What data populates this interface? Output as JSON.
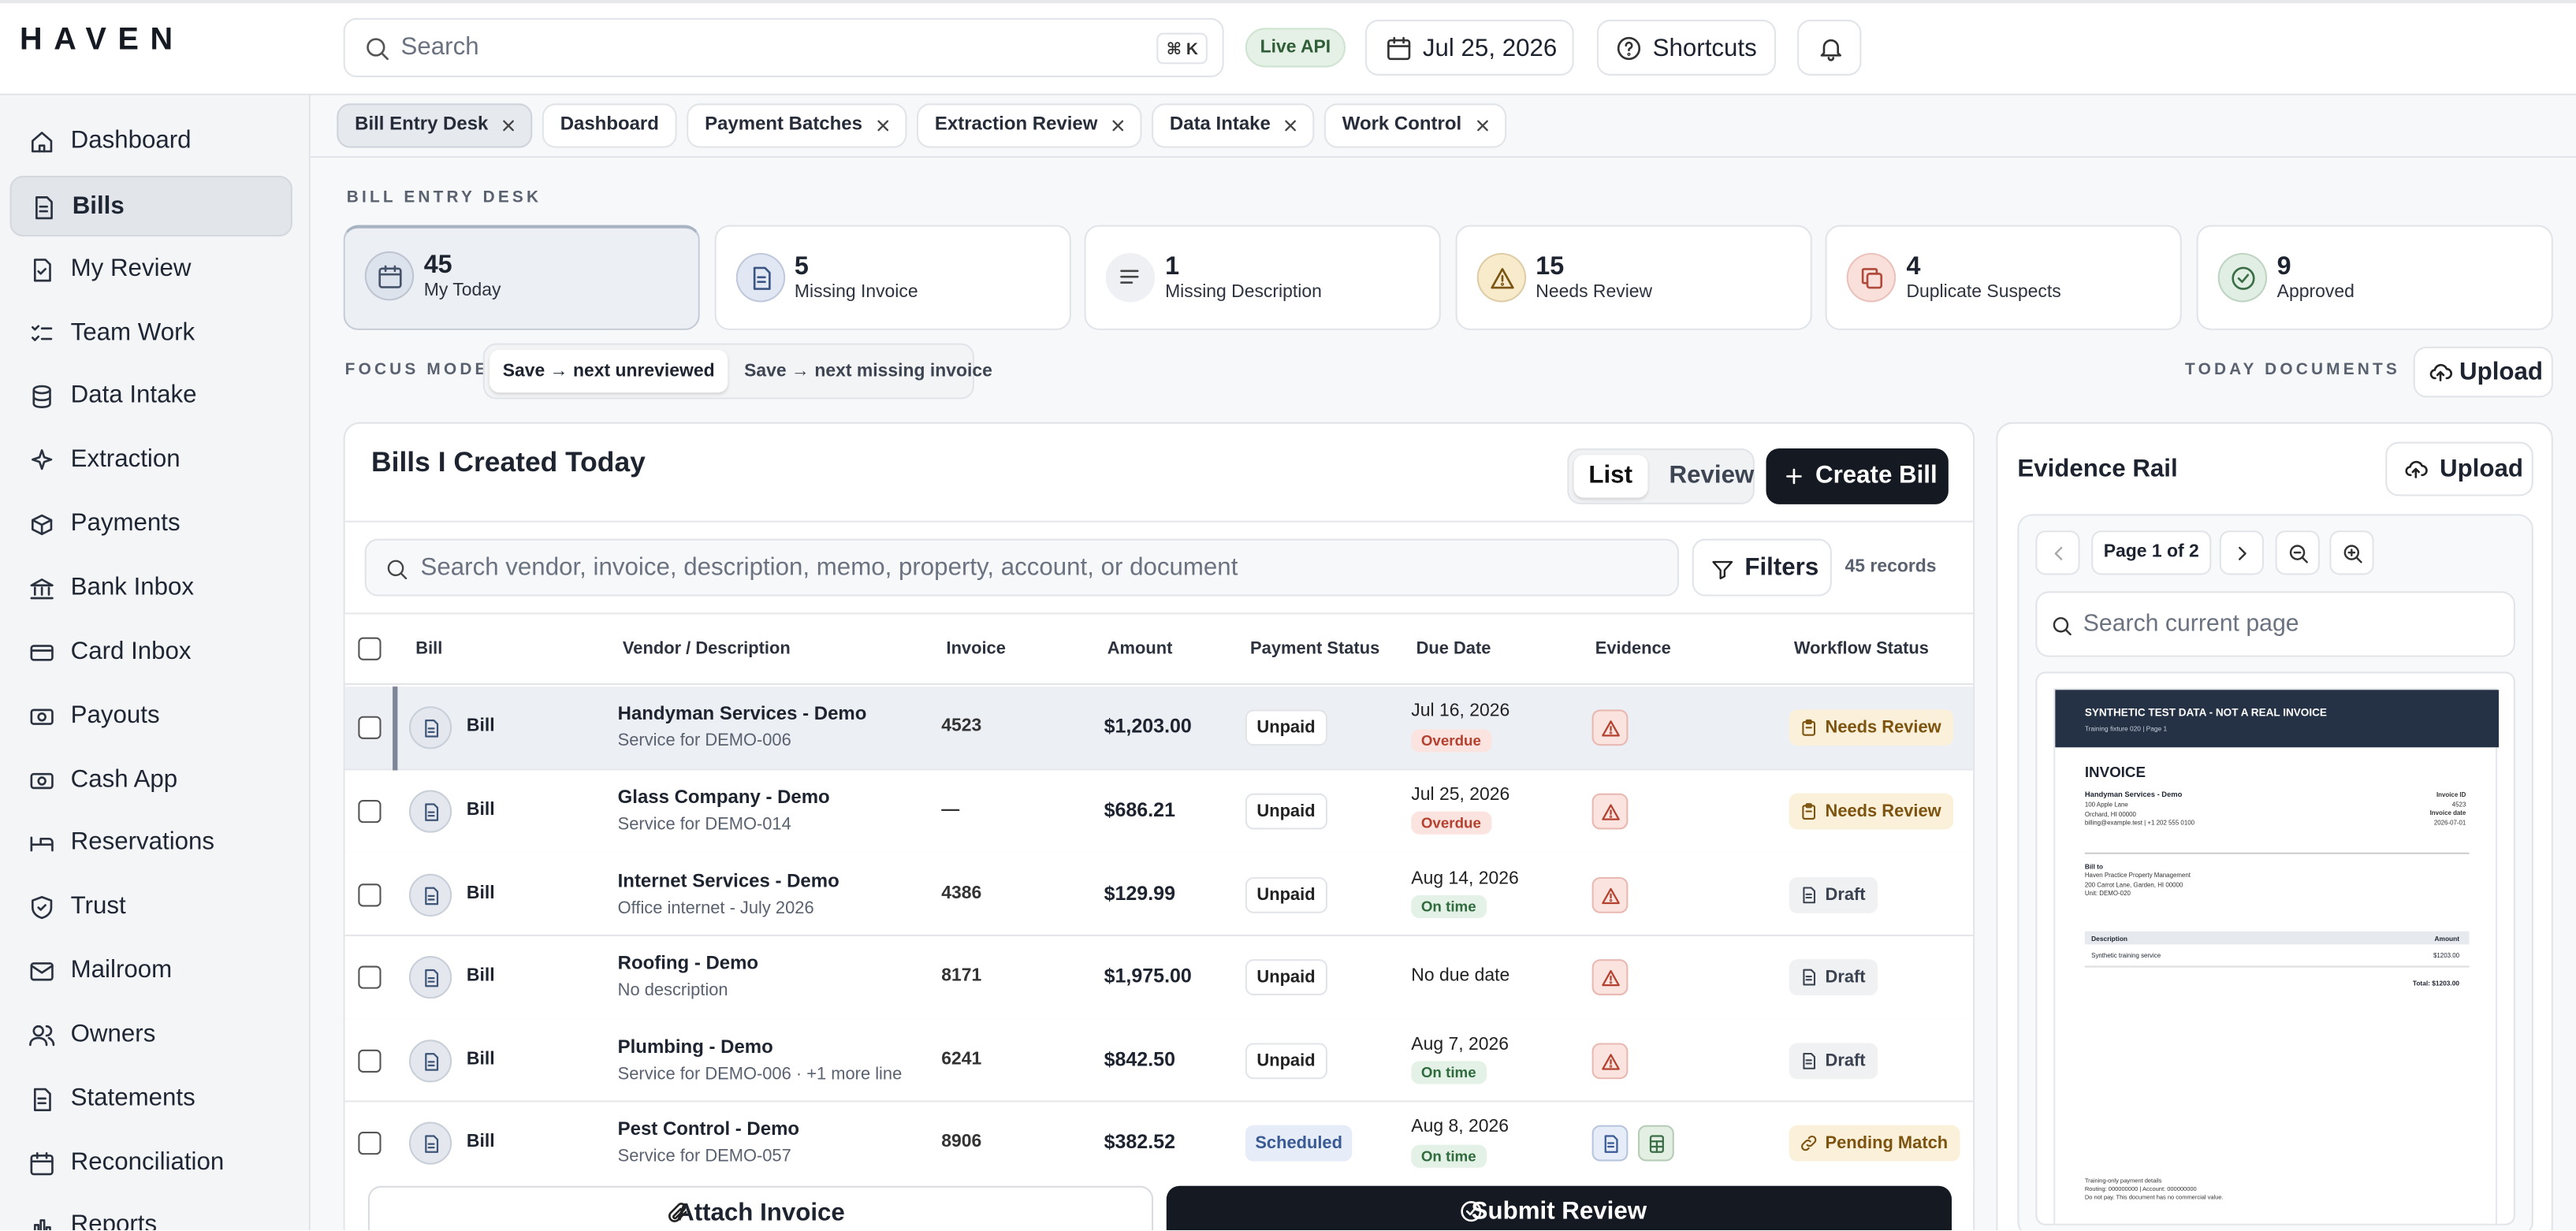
{
  "brand": "HAVEN",
  "topbar": {
    "search": "Search",
    "shortcut": "⌘ K",
    "api": "Live API",
    "date": "Jul 25, 2026",
    "shortcuts": "Shortcuts"
  },
  "nav": [
    {
      "label": "Dashboard"
    },
    {
      "label": "Bills",
      "active": true
    },
    {
      "label": "My Review"
    },
    {
      "label": "Team Work"
    },
    {
      "label": "Data Intake"
    },
    {
      "label": "Extraction"
    },
    {
      "label": "Payments"
    },
    {
      "label": "Bank Inbox"
    },
    {
      "label": "Card Inbox"
    },
    {
      "label": "Payouts"
    },
    {
      "label": "Cash App"
    },
    {
      "label": "Reservations"
    },
    {
      "label": "Trust"
    },
    {
      "label": "Mailroom"
    },
    {
      "label": "Owners"
    },
    {
      "label": "Statements"
    },
    {
      "label": "Reconciliation"
    },
    {
      "label": "Reports"
    }
  ],
  "tabs": [
    {
      "label": "Bill Entry Desk",
      "active": true,
      "closable": true
    },
    {
      "label": "Dashboard",
      "closable": false
    },
    {
      "label": "Payment Batches",
      "closable": true
    },
    {
      "label": "Extraction Review",
      "closable": true
    },
    {
      "label": "Data Intake",
      "closable": true
    },
    {
      "label": "Work Control",
      "closable": true
    }
  ],
  "desk": {
    "title": "BILL ENTRY DESK",
    "stats": [
      {
        "value": 45,
        "label": "My Today",
        "active": true,
        "tone": "slate"
      },
      {
        "value": 5,
        "label": "Missing Invoice",
        "tone": "blue"
      },
      {
        "value": 1,
        "label": "Missing Description",
        "tone": "gray"
      },
      {
        "value": 15,
        "label": "Needs Review",
        "tone": "amber"
      },
      {
        "value": 4,
        "label": "Duplicate Suspects",
        "tone": "red"
      },
      {
        "value": 9,
        "label": "Approved",
        "tone": "green"
      }
    ]
  },
  "focus": {
    "label": "FOCUS MODE",
    "options": [
      {
        "label": "Save → next unreviewed",
        "active": true
      },
      {
        "label": "Save → next missing invoice"
      }
    ]
  },
  "documents": {
    "label": "TODAY DOCUMENTS",
    "upload": "Upload"
  },
  "bills": {
    "title": "Bills I Created Today",
    "views": [
      {
        "label": "List",
        "active": true
      },
      {
        "label": "Review"
      }
    ],
    "create": "Create Bill",
    "search": "Search vendor, invoice, description, memo, property, account, or document",
    "filters": "Filters",
    "records": "45 records",
    "columns": [
      "Bill",
      "Vendor / Description",
      "Invoice",
      "Amount",
      "Payment Status",
      "Due Date",
      "Evidence",
      "Workflow Status"
    ],
    "rows": [
      {
        "type": "Bill",
        "vendor": "Handyman Services - Demo",
        "description": "Service for DEMO-006",
        "invoice": "4523",
        "amount": "$1,203.00",
        "payment": "Unpaid",
        "payment_tone": "plain",
        "due": "Jul 16, 2026",
        "due_status": "Overdue",
        "due_tone": "danger",
        "evidence": [
          "warning"
        ],
        "workflow": "Needs Review",
        "workflow_tone": "warning",
        "workflow_icon": "clipboard",
        "selected": true
      },
      {
        "type": "Bill",
        "vendor": "Glass Company - Demo",
        "description": "Service for DEMO-014",
        "invoice": "—",
        "amount": "$686.21",
        "payment": "Unpaid",
        "payment_tone": "plain",
        "due": "Jul 25, 2026",
        "due_status": "Overdue",
        "due_tone": "danger",
        "evidence": [
          "warning"
        ],
        "workflow": "Needs Review",
        "workflow_tone": "warning",
        "workflow_icon": "clipboard"
      },
      {
        "type": "Bill",
        "vendor": "Internet Services - Demo",
        "description": "Office internet - July 2026",
        "invoice": "4386",
        "amount": "$129.99",
        "payment": "Unpaid",
        "payment_tone": "plain",
        "due": "Aug 14, 2026",
        "due_status": "On time",
        "due_tone": "success",
        "evidence": [
          "warning"
        ],
        "workflow": "Draft",
        "workflow_tone": "neutral",
        "workflow_icon": "doc"
      },
      {
        "type": "Bill",
        "vendor": "Roofing - Demo",
        "description": "No description",
        "invoice": "8171",
        "amount": "$1,975.00",
        "payment": "Unpaid",
        "payment_tone": "plain",
        "due": "No due date",
        "evidence": [
          "warning"
        ],
        "workflow": "Draft",
        "workflow_tone": "neutral",
        "workflow_icon": "doc"
      },
      {
        "type": "Bill",
        "vendor": "Plumbing - Demo",
        "description": "Service for DEMO-006 · +1 more line",
        "invoice": "6241",
        "amount": "$842.50",
        "payment": "Unpaid",
        "payment_tone": "plain",
        "due": "Aug 7, 2026",
        "due_status": "On time",
        "due_tone": "success",
        "evidence": [
          "warning"
        ],
        "workflow": "Draft",
        "workflow_tone": "neutral",
        "workflow_icon": "doc"
      },
      {
        "type": "Bill",
        "vendor": "Pest Control - Demo",
        "description": "Service for DEMO-057",
        "invoice": "8906",
        "amount": "$382.52",
        "payment": "Scheduled",
        "payment_tone": "info",
        "due": "Aug 8, 2026",
        "due_status": "On time",
        "due_tone": "success",
        "evidence": [
          "document",
          "sheet"
        ],
        "workflow": "Pending Match",
        "workflow_tone": "warning",
        "workflow_icon": "link"
      }
    ],
    "attach": "Attach Invoice",
    "submit": "Submit Review"
  },
  "evidence": {
    "title": "Evidence Rail",
    "upload": "Upload",
    "page": "Page 1 of 2",
    "search": "Search current page",
    "document": {
      "banner": "SYNTHETIC TEST DATA - NOT A REAL INVOICE",
      "banner_sub": "Training fixture 020 | Page 1",
      "heading": "INVOICE",
      "vendor": "Handyman Services - Demo",
      "vendor_lines": [
        "100 Apple Lane",
        "Orchard, HI 00000",
        "billing@example.test | +1 202 555 0100"
      ],
      "meta": [
        "Invoice ID",
        "4523",
        "Invoice date",
        "2026-07-01"
      ],
      "bill_to": "Bill to",
      "bill_to_lines": [
        "Haven Practice Property Management",
        "200 Carrot Lane, Garden, HI 00000",
        "Unit: DEMO-020"
      ],
      "table_head": [
        "Description",
        "Amount"
      ],
      "line_item": [
        "Synthetic training service",
        "$1203.00"
      ],
      "total": "Total: $1203.00",
      "footer": [
        "Training-only payment details",
        "Routing: 000000000 | Account: 000000000",
        "Do not pay. This document has no commercial value."
      ]
    }
  }
}
